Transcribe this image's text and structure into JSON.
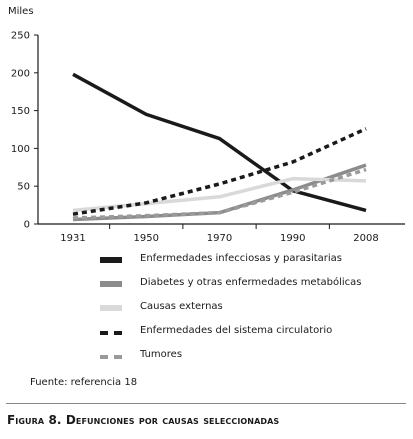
{
  "chart_data": {
    "type": "line",
    "ylabel": "Miles",
    "ylim": [
      0,
      250
    ],
    "yticks": [
      "0",
      "50",
      "100",
      "150",
      "200",
      "250"
    ],
    "categories": [
      "1931",
      "1950",
      "1970",
      "1990",
      "2008"
    ],
    "series": [
      {
        "name": "Enfermedades infecciosas y parasitarias",
        "color": "#1a1a1a",
        "style": "solid",
        "values": [
          198,
          145,
          113,
          44,
          18
        ]
      },
      {
        "name": "Diabetes y otras enfermedades metabólicas",
        "color": "#8c8c8c",
        "style": "solid",
        "values": [
          6,
          10,
          15,
          45,
          78
        ]
      },
      {
        "name": "Causas externas",
        "color": "#d9d9d9",
        "style": "solid",
        "values": [
          18,
          27,
          36,
          60,
          57
        ]
      },
      {
        "name": "Enfermedades del sistema circulatorio",
        "color": "#1a1a1a",
        "style": "dashed",
        "values": [
          13,
          28,
          53,
          82,
          126
        ]
      },
      {
        "name": "Tumores",
        "color": "#9a9a9a",
        "style": "dashed",
        "values": [
          8,
          11,
          15,
          42,
          72
        ]
      }
    ],
    "grid": false,
    "legend_position": "bottom"
  },
  "source": "Fuente: referencia 18",
  "caption": "Figura 8. Defunciones por causas seleccionadas"
}
